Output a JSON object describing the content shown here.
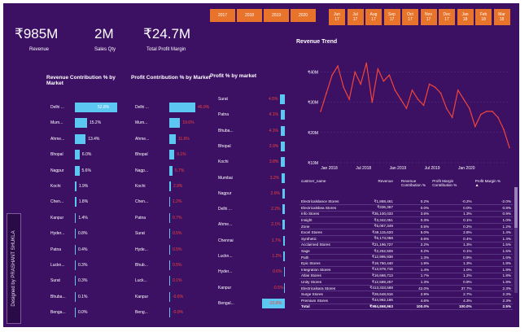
{
  "side_label": "Designed by PRASHANT SHUKLA",
  "years": [
    "2017",
    "2018",
    "2019",
    "2020"
  ],
  "months": [
    "Jun 17",
    "Jul 17",
    "Aug 17",
    "Sep 17",
    "Oct 17",
    "Nov 17",
    "Dec 17",
    "Jan 18",
    "Feb 18",
    "Mar 18"
  ],
  "kpis": [
    {
      "value": "₹985M",
      "label": "Revenue"
    },
    {
      "value": "2M",
      "label": "Sales Qty"
    },
    {
      "value": "₹24.7M",
      "label": "Total Profit Margin"
    }
  ],
  "revenue_contribution": {
    "title": "Revenue Contribution % by Market",
    "markets": [
      "Delhi ...",
      "Mum...",
      "Ahme...",
      "Bhopal",
      "Nagpur",
      "Kochi",
      "Chen...",
      "Kanpur",
      "Hyder...",
      "Patna",
      "Luckn...",
      "Surat",
      "Bhuba...",
      "Benga..."
    ],
    "labels": [
      "52.8%",
      "15.2%",
      "13.4%",
      "6.0%",
      "5.6%",
      "1.9%",
      "1.8%",
      "1.4%",
      "0.8%",
      "0.4%",
      "0.3%",
      "0.3%",
      "0.1%",
      "0.0%"
    ],
    "values": [
      52.8,
      15.2,
      13.4,
      6.0,
      5.6,
      1.9,
      1.8,
      1.4,
      0.8,
      0.4,
      0.3,
      0.3,
      0.1,
      0.0
    ]
  },
  "profit_contribution": {
    "title": "Profit Contribution % by Market",
    "markets": [
      "Delhi ...",
      "Mum...",
      "Ahme...",
      "Bhopal",
      "Nagp...",
      "Kochi",
      "Chen...",
      "Patna",
      "Surat",
      "Hyde...",
      "Bhub...",
      "Luck...",
      "Kanpur",
      "Beng..."
    ],
    "labels": [
      "46.9%",
      "19.6%",
      "11.6%",
      "9.1%",
      "5.7%",
      "2.9%",
      "1.2%",
      "0.7%",
      "0.5%",
      "0.5%",
      "0.5%",
      "0.1%",
      "-0.6%",
      "-0.9%"
    ],
    "values": [
      46.9,
      19.6,
      11.6,
      9.1,
      5.7,
      2.9,
      1.2,
      0.7,
      0.5,
      0.5,
      0.5,
      0.1,
      -0.6,
      -0.9
    ]
  },
  "profit_by_market": {
    "title": "Profit % by market",
    "markets": [
      "Surat",
      "Patna",
      "Bhuba...",
      "Bhopal",
      "Kochi",
      "Mumbai",
      "Nagpur",
      "Delhi ...",
      "Ahme...",
      "Chennai",
      "Luckn...",
      "Hyder...",
      "Kanpur",
      "Bengal..."
    ],
    "labels": [
      "4.5%",
      "4.1%",
      "4.1%",
      "3.9%",
      "3.8%",
      "3.2%",
      "2.6%",
      "2.2%",
      "2.1%",
      "1.7%",
      "1.2%",
      "0.6%",
      "-0.5%",
      "-20.8%"
    ],
    "values": [
      4.5,
      4.1,
      4.1,
      3.9,
      3.8,
      3.2,
      2.6,
      2.2,
      2.1,
      1.7,
      1.2,
      0.6,
      -0.5,
      -20.8
    ]
  },
  "revenue_trend": {
    "title": "Revenue Trend",
    "color": "#f0453a"
  },
  "chart_data": {
    "type": "line",
    "title": "Revenue Trend",
    "x_tick_labels": [
      "Jan 2018",
      "Jul 2018",
      "Jan 2019",
      "Jul 2019",
      "Jan 2020"
    ],
    "y_tick_labels": [
      "₹10M",
      "₹20M",
      "₹30M",
      "₹40M"
    ],
    "ylim": [
      10,
      45
    ],
    "x": [
      0,
      1,
      2,
      3,
      4,
      5,
      6,
      7,
      8,
      9,
      10,
      11,
      12,
      13,
      14,
      15,
      16,
      17,
      18,
      19,
      20,
      21,
      22,
      23,
      24,
      25,
      26,
      27,
      28,
      29,
      30,
      31,
      32,
      33
    ],
    "y": [
      27,
      33,
      39,
      42,
      35,
      31,
      40,
      36,
      43,
      30,
      41,
      37,
      39,
      34,
      31,
      28,
      34,
      31,
      29,
      36,
      35,
      33,
      28,
      25,
      34,
      31,
      28,
      22,
      26,
      27,
      27,
      25,
      21,
      15
    ],
    "series_name": "Revenue",
    "unit": "₹M"
  },
  "table": {
    "columns": [
      "custmer_name",
      "Revenue",
      "Revenue Contribution %",
      "Profit Margin Contribution %",
      "Profit Margin %"
    ],
    "rows": [
      [
        "Electricalslance Stores",
        "₹1,868,461",
        "0.2%",
        "-0.2%",
        "-2.0%"
      ],
      [
        "Electricalsbea Stores",
        "₹336,367",
        "0.0%",
        "0.0%",
        "0.8%"
      ],
      [
        "Info Stores",
        "₹35,100,033",
        "3.6%",
        "1.3%",
        "0.9%"
      ],
      [
        "Insight",
        "₹3,342,051",
        "0.3%",
        "0.1%",
        "1.0%"
      ],
      [
        "Zone",
        "₹5,067,349",
        "0.5%",
        "0.2%",
        "1.2%"
      ],
      [
        "Excel Stores",
        "₹49,115,620",
        "5.0%",
        "2.8%",
        "1.4%"
      ],
      [
        "Synthetic",
        "₹6,173,068",
        "0.6%",
        "0.4%",
        "1.4%"
      ],
      [
        "Acclaimed Stores",
        "₹21,196,727",
        "2.2%",
        "1.3%",
        "1.5%"
      ],
      [
        "Sage",
        "₹2,252,506",
        "0.2%",
        "0.1%",
        "1.5%"
      ],
      [
        "Path",
        "₹12,995,938",
        "1.3%",
        "0.9%",
        "1.6%"
      ],
      [
        "Epic Stores",
        "₹18,750,440",
        "1.9%",
        "1.3%",
        "1.8%"
      ],
      [
        "Integration Stores",
        "₹13,979,716",
        "1.4%",
        "1.0%",
        "1.8%"
      ],
      [
        "Atlas Stores",
        "₹16,666,713",
        "1.7%",
        "1.2%",
        "1.8%"
      ],
      [
        "Unity Stores",
        "₹12,589,257",
        "1.3%",
        "0.9%",
        "1.8%"
      ],
      [
        "Electricalsara Stores",
        "₹413,333,588",
        "42.0%",
        "37.7%",
        "2.3%"
      ],
      [
        "Surge Stores",
        "₹28,648,916",
        "2.9%",
        "2.7%",
        "2.3%"
      ],
      [
        "Premium Stores",
        "₹44,962,166",
        "4.6%",
        "4.3%",
        "2.3%"
      ]
    ],
    "total": [
      "Total",
      "₹984,868,963",
      "100.0%",
      "100.0%",
      "2.5%"
    ]
  }
}
